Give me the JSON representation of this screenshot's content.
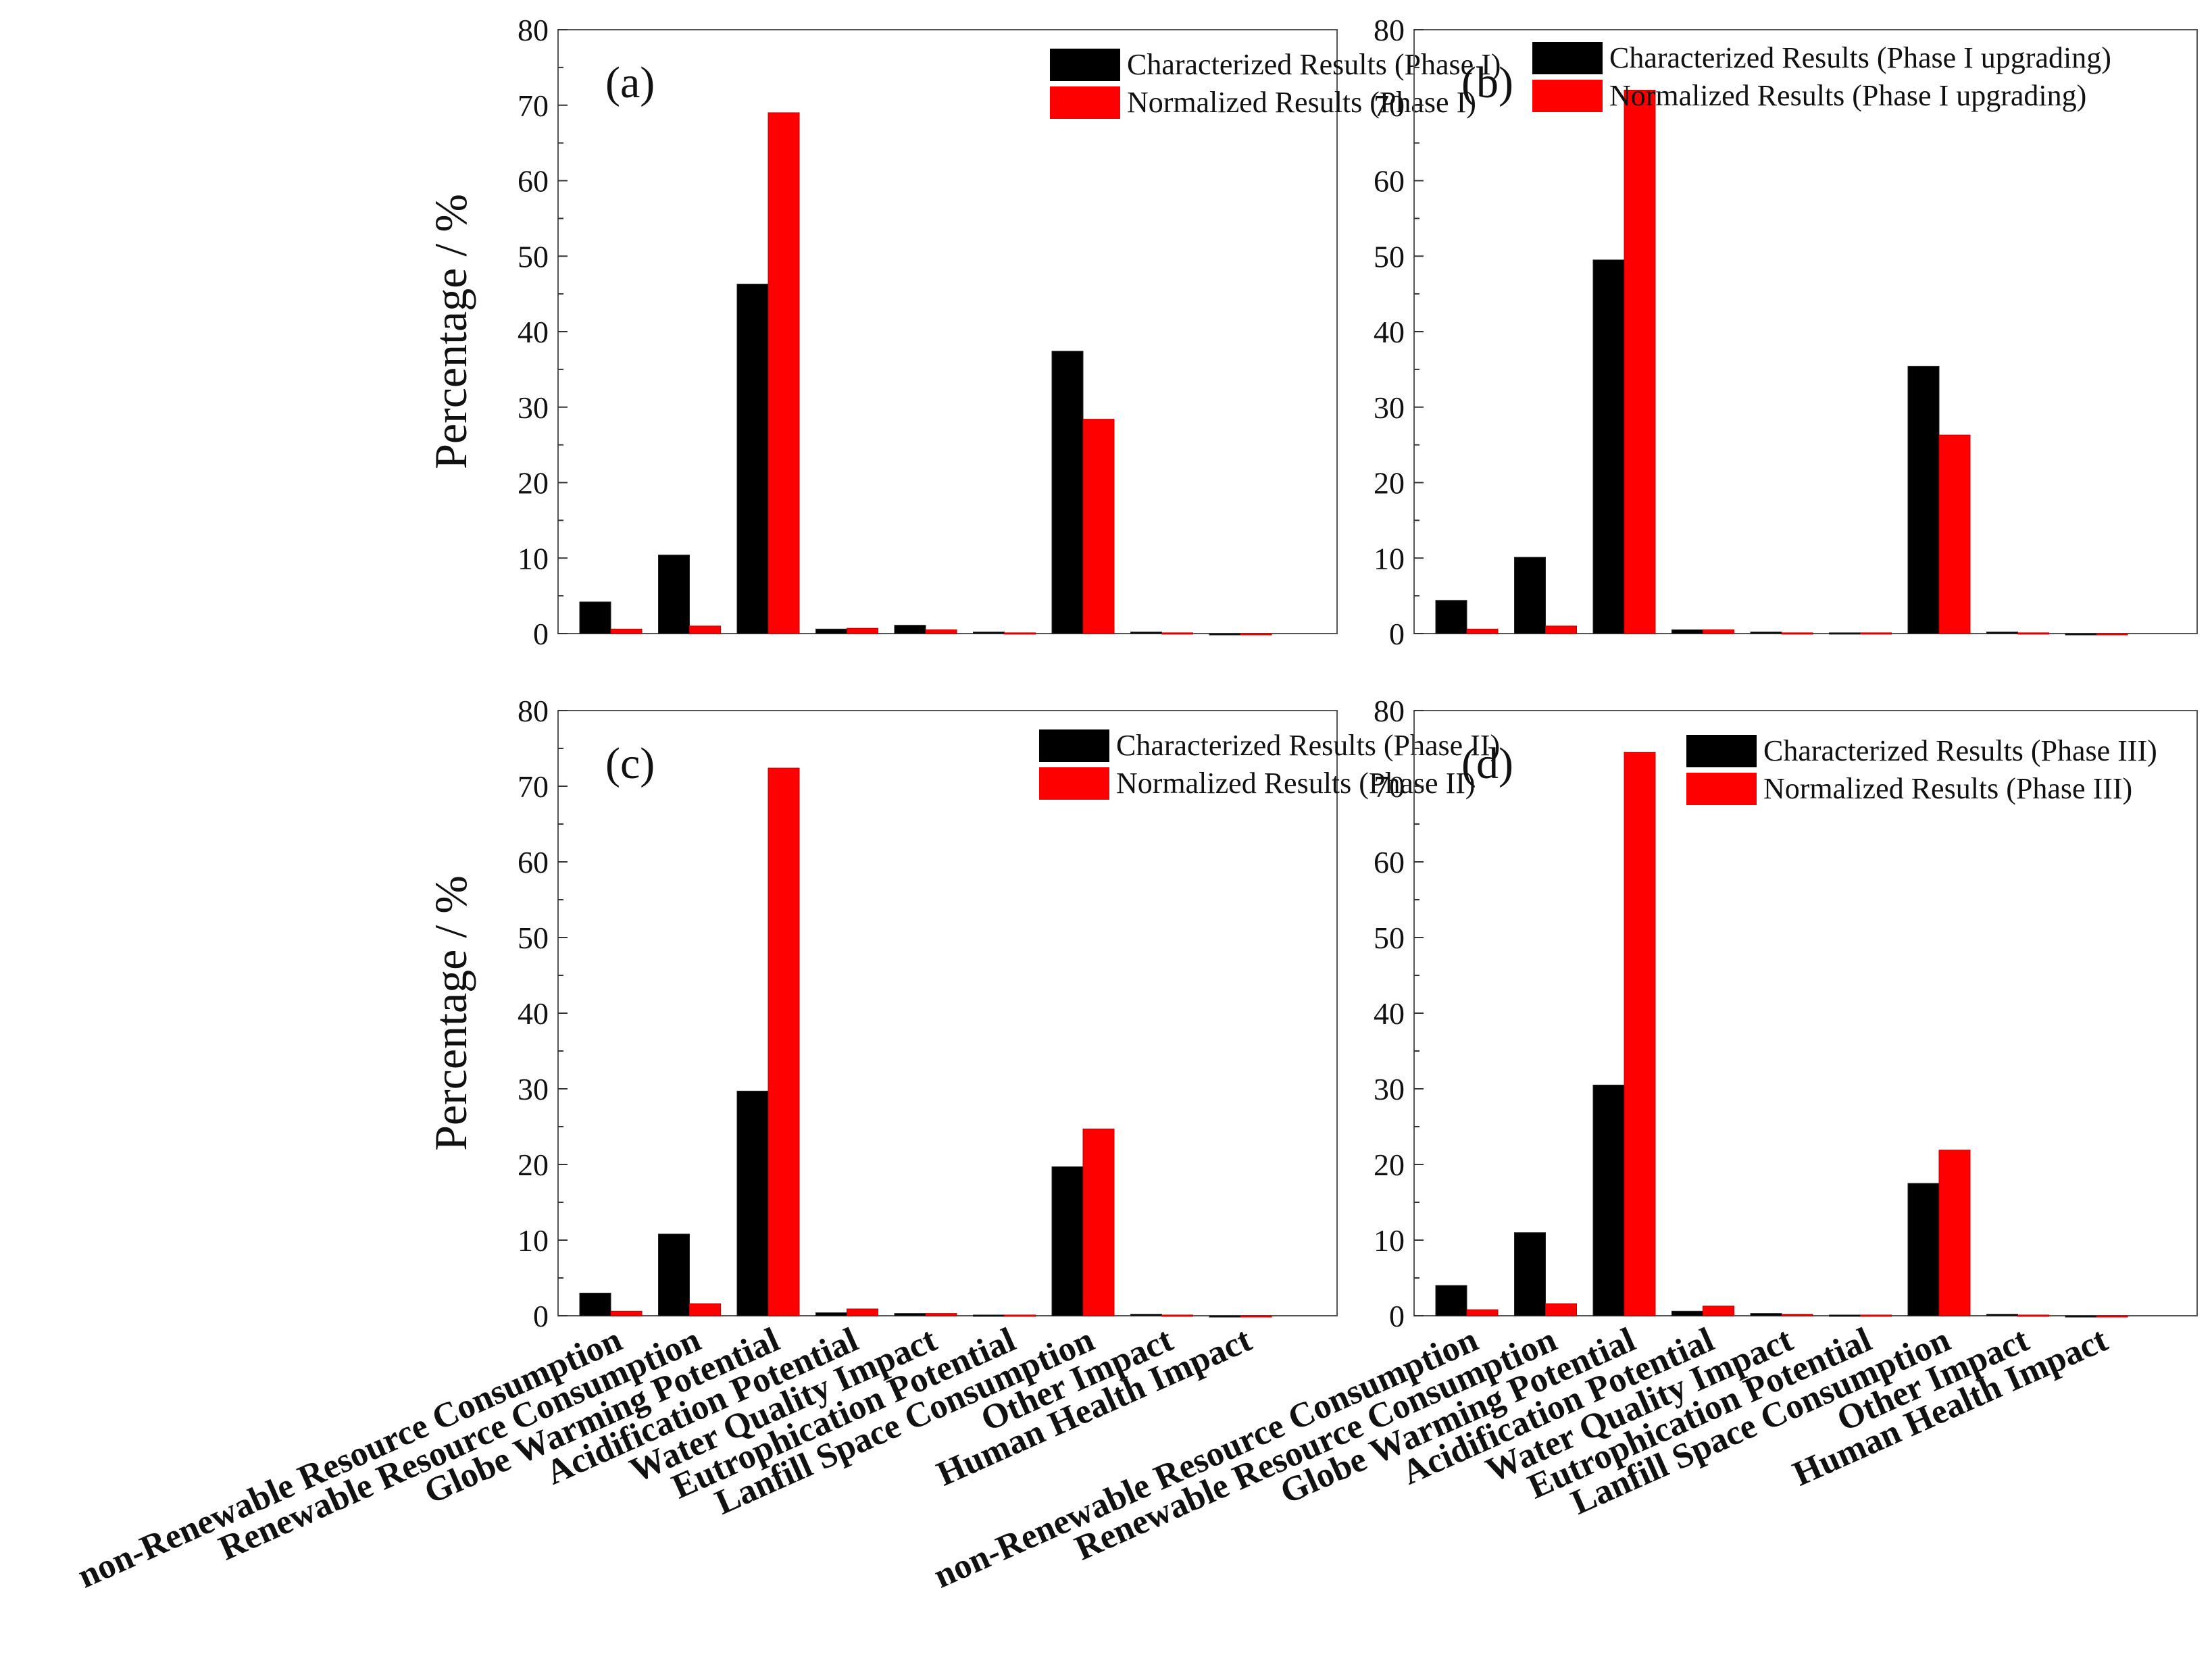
{
  "chart_data": [
    {
      "type": "bar",
      "panel_label": "(a)",
      "ylabel": "Percentage / %",
      "ylim": [
        0,
        80
      ],
      "yticks": [
        0,
        10,
        20,
        30,
        40,
        50,
        60,
        70,
        80
      ],
      "categories": [
        "non-Renewable Resource Consumption",
        "Renewable Resource Consumption",
        "Globe Warming Potential",
        "Acidification Potential",
        "Water Quality Impact",
        "Eutrophication Potential",
        "Lanfill Space Consumption",
        "Other Impact",
        "Human Health Impact"
      ],
      "legend_position": "top-right",
      "series": [
        {
          "name": "Characterized Results (Phase I)",
          "color": "#000000",
          "values": [
            4.2,
            10.4,
            46.3,
            0.6,
            1.1,
            0.2,
            37.4,
            0.2,
            0.0
          ]
        },
        {
          "name": "Normalized Results (Phase I)",
          "color": "#ff0000",
          "values": [
            0.6,
            1.0,
            69.0,
            0.7,
            0.5,
            0.1,
            28.4,
            0.1,
            0.0
          ]
        }
      ]
    },
    {
      "type": "bar",
      "panel_label": "(b)",
      "ylabel": "",
      "ylim": [
        0,
        80
      ],
      "yticks": [
        0,
        10,
        20,
        30,
        40,
        50,
        60,
        70,
        80
      ],
      "categories": [
        "non-Renewable Resource Consumption",
        "Renewable Resource Consumption",
        "Globe Warming Potential",
        "Acidification Potential",
        "Water Quality Impact",
        "Eutrophication Potential",
        "Lanfill Space Consumption",
        "Other Impact",
        "Human Health Impact"
      ],
      "legend_position": "top-right",
      "series": [
        {
          "name": "Characterized Results (Phase I upgrading)",
          "color": "#000000",
          "values": [
            4.4,
            10.1,
            49.5,
            0.5,
            0.2,
            0.1,
            35.4,
            0.2,
            0.0
          ]
        },
        {
          "name": "Normalized Results (Phase I upgrading)",
          "color": "#ff0000",
          "values": [
            0.6,
            1.0,
            72.0,
            0.5,
            0.1,
            0.1,
            26.3,
            0.1,
            0.0
          ]
        }
      ]
    },
    {
      "type": "bar",
      "panel_label": "(c)",
      "ylabel": "Percentage / %",
      "ylim": [
        0,
        80
      ],
      "yticks": [
        0,
        10,
        20,
        30,
        40,
        50,
        60,
        70,
        80
      ],
      "categories": [
        "non-Renewable Resource Consumption",
        "Renewable Resource Consumption",
        "Globe Warming Potential",
        "Acidification Potential",
        "Water Quality Impact",
        "Eutrophication Potential",
        "Lanfill Space Consumption",
        "Other Impact",
        "Human Health Impact"
      ],
      "legend_position": "top-right",
      "series": [
        {
          "name": "Characterized Results (Phase II)",
          "color": "#000000",
          "values": [
            3.0,
            10.8,
            29.7,
            0.4,
            0.3,
            0.1,
            19.7,
            0.2,
            0.0
          ]
        },
        {
          "name": "Normalized Results (Phase II)",
          "color": "#ff0000",
          "values": [
            0.6,
            1.6,
            72.4,
            0.9,
            0.3,
            0.1,
            24.7,
            0.1,
            0.0
          ]
        }
      ]
    },
    {
      "type": "bar",
      "panel_label": "(d)",
      "ylabel": "",
      "ylim": [
        0,
        80
      ],
      "yticks": [
        0,
        10,
        20,
        30,
        40,
        50,
        60,
        70,
        80
      ],
      "categories": [
        "non-Renewable Resource Consumption",
        "Renewable Resource Consumption",
        "Globe Warming Potential",
        "Acidification Potential",
        "Water Quality Impact",
        "Eutrophication Potential",
        "Lanfill Space Consumption",
        "Other Impact",
        "Human Health Impact"
      ],
      "legend_position": "top-right",
      "series": [
        {
          "name": "Characterized Results (Phase III)",
          "color": "#000000",
          "values": [
            4.0,
            11.0,
            30.5,
            0.6,
            0.3,
            0.1,
            17.5,
            0.2,
            0.0
          ]
        },
        {
          "name": "Normalized Results (Phase III)",
          "color": "#ff0000",
          "values": [
            0.8,
            1.6,
            74.5,
            1.3,
            0.2,
            0.1,
            21.9,
            0.1,
            0.0
          ]
        }
      ]
    }
  ]
}
